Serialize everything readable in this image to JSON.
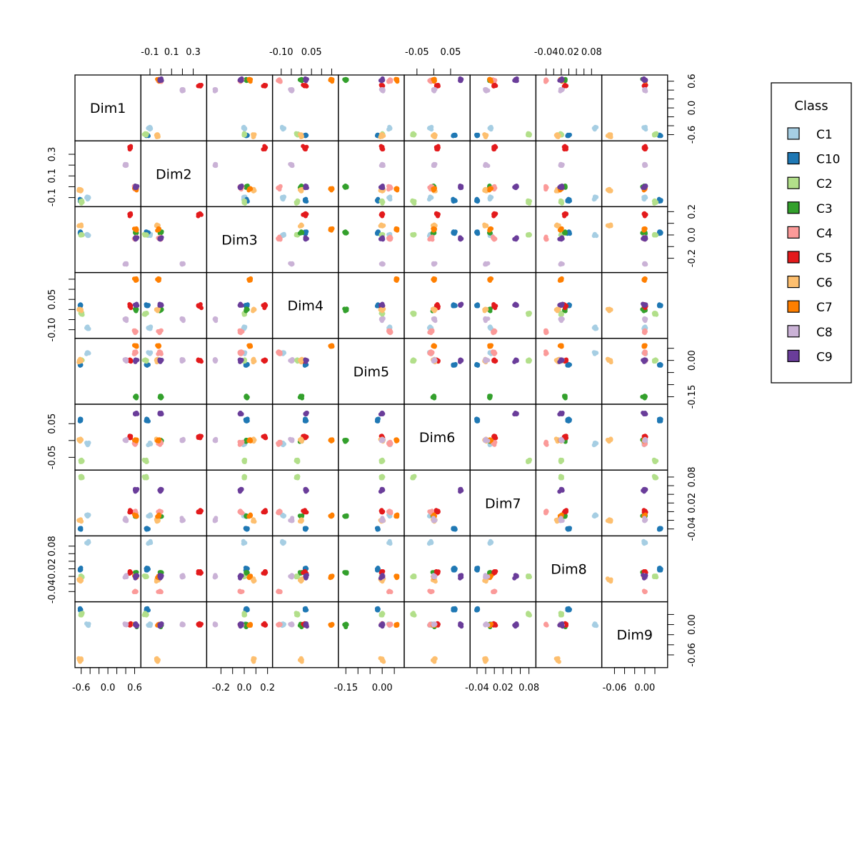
{
  "chart_data": {
    "type": "scatter",
    "variables": [
      "Dim1",
      "Dim2",
      "Dim3",
      "Dim4",
      "Dim5",
      "Dim6",
      "Dim7",
      "Dim8",
      "Dim9"
    ],
    "ranges": [
      [
        -0.68,
        0.68
      ],
      [
        -0.16,
        0.4
      ],
      [
        -0.3,
        0.22
      ],
      [
        -0.13,
        0.17
      ],
      [
        -0.17,
        0.08
      ],
      [
        -0.08,
        0.1
      ],
      [
        -0.05,
        0.09
      ],
      [
        -0.06,
        0.1
      ],
      [
        -0.08,
        0.04
      ]
    ],
    "ticks": [
      {
        "major": [
          -0.6,
          0.0,
          0.6
        ],
        "minor": [
          -0.4,
          -0.2,
          0.2,
          0.4
        ],
        "labels": [
          "-0.6",
          "0.0",
          "0.6"
        ]
      },
      {
        "major": [
          -0.1,
          0.1,
          0.3
        ],
        "minor": [
          0.0,
          0.2
        ],
        "labels": [
          "-0.1",
          "0.1",
          "0.3"
        ]
      },
      {
        "major": [
          -0.2,
          0.0,
          0.2
        ],
        "minor": [
          -0.1,
          0.1
        ],
        "labels": [
          "-0.2",
          "0.0",
          "0.2"
        ]
      },
      {
        "major": [
          -0.1,
          0.05
        ],
        "minor": [
          -0.05,
          0.0,
          0.1,
          0.15
        ],
        "labels": [
          "-0.10",
          "0.05"
        ]
      },
      {
        "major": [
          -0.15,
          0.0
        ],
        "minor": [
          -0.1,
          -0.05,
          0.05
        ],
        "labels": [
          "-0.15",
          "0.00"
        ]
      },
      {
        "major": [
          -0.05,
          0.05
        ],
        "minor": [
          0.0
        ],
        "labels": [
          "-0.05",
          "0.05"
        ]
      },
      {
        "major": [
          -0.04,
          0.02,
          0.08
        ],
        "minor": [
          -0.02,
          0.0,
          0.04,
          0.06
        ],
        "labels": [
          "-0.04",
          "0.02",
          "0.08"
        ]
      },
      {
        "major": [
          -0.04,
          0.02,
          0.08
        ],
        "minor": [
          -0.02,
          0.0,
          0.04,
          0.06
        ],
        "labels": [
          "-0.04",
          "0.02",
          "0.08"
        ]
      },
      {
        "major": [
          -0.06,
          0.0
        ],
        "minor": [
          -0.04,
          -0.02,
          0.02
        ],
        "labels": [
          "-0.06",
          "0.00"
        ]
      }
    ],
    "classes": [
      "C1",
      "C10",
      "C2",
      "C3",
      "C4",
      "C5",
      "C6",
      "C7",
      "C8",
      "C9"
    ],
    "colors": {
      "C1": "#a6cee3",
      "C10": "#1f78b4",
      "C2": "#b2df8a",
      "C3": "#33a02c",
      "C4": "#fb9a99",
      "C5": "#e31a1c",
      "C6": "#fdbf6f",
      "C7": "#ff7f00",
      "C8": "#cab2d6",
      "C9": "#6a3d9a"
    },
    "centroids": {
      "C1": [
        -0.45,
        -0.1,
        0.0,
        -0.09,
        0.03,
        -0.01,
        -0.01,
        0.09,
        0.0
      ],
      "C10": [
        -0.62,
        -0.13,
        0.02,
        0.02,
        -0.02,
        0.06,
        -0.04,
        0.02,
        0.03
      ],
      "C2": [
        -0.6,
        -0.14,
        0.0,
        -0.02,
        0.0,
        -0.06,
        0.08,
        0.0,
        0.02
      ],
      "C3": [
        0.62,
        0.0,
        0.02,
        0.0,
        -0.15,
        0.0,
        -0.01,
        0.01,
        0.0
      ],
      "C4": [
        0.62,
        -0.01,
        -0.03,
        -0.11,
        0.03,
        -0.01,
        0.0,
        -0.04,
        0.0
      ],
      "C5": [
        0.5,
        0.36,
        0.18,
        0.02,
        0.0,
        0.01,
        0.0,
        0.01,
        0.0
      ],
      "C6": [
        -0.62,
        -0.03,
        0.08,
        0.0,
        0.0,
        0.0,
        -0.02,
        -0.01,
        -0.07
      ],
      "C7": [
        0.62,
        -0.02,
        0.05,
        0.15,
        0.06,
        0.0,
        -0.01,
        0.0,
        0.0
      ],
      "C8": [
        0.4,
        0.2,
        -0.25,
        -0.05,
        0.0,
        0.0,
        -0.02,
        0.0,
        0.0
      ],
      "C9": [
        0.62,
        0.0,
        -0.03,
        0.02,
        0.0,
        0.08,
        0.05,
        0.0,
        0.0
      ]
    },
    "legend": {
      "title": "Class",
      "position": "right"
    },
    "grid": false
  }
}
